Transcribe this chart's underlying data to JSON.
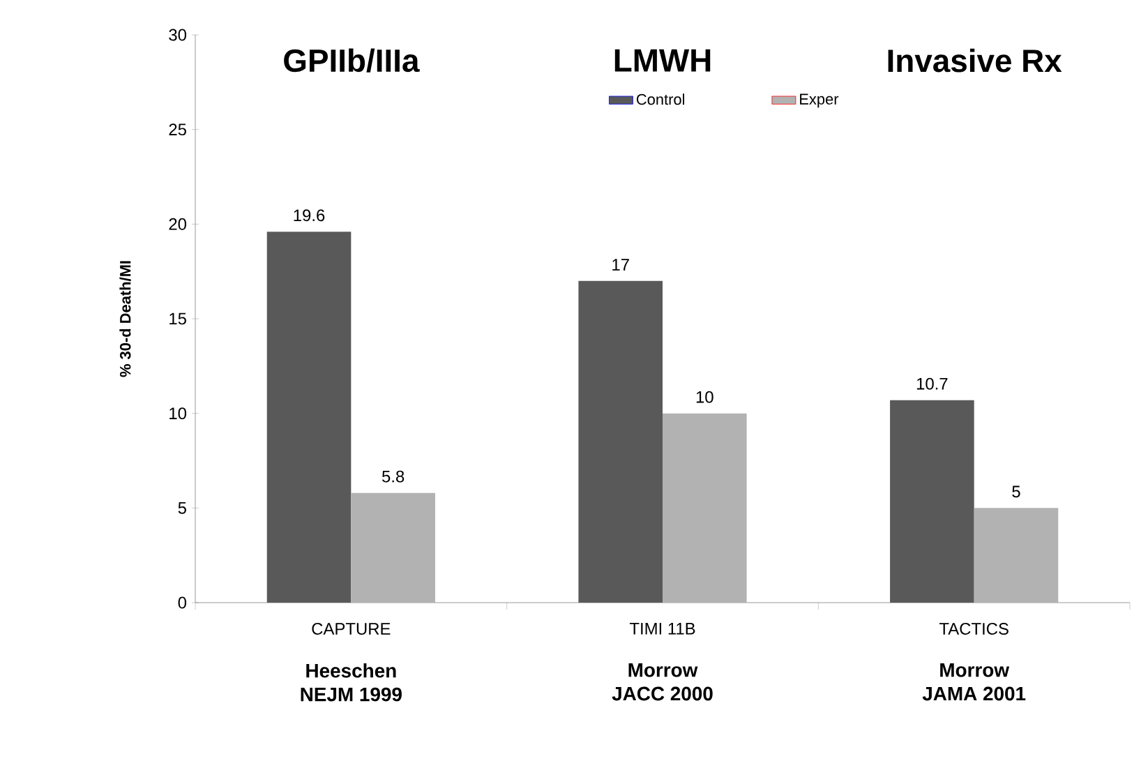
{
  "chart_data": {
    "type": "bar",
    "categories": [
      "CAPTURE",
      "TIMI 11B",
      "TACTICS"
    ],
    "series": [
      {
        "name": "Control",
        "color": "#595959",
        "values": [
          19.6,
          17,
          10.7
        ]
      },
      {
        "name": "Exper",
        "color": "#b2b2b2",
        "values": [
          5.8,
          10,
          5
        ]
      }
    ],
    "ylabel": "% 30-d Death/MI",
    "ylim": [
      0,
      30
    ],
    "yticks": [
      0,
      5,
      10,
      15,
      20,
      25,
      30
    ],
    "data_labels": true,
    "legend": "top",
    "annotations": [
      "GPIIb/IIIa",
      "LMWH",
      "Invasive Rx",
      "Heeschen",
      "NEJM 1999",
      "Morrow",
      "JACC 2000",
      "Morrow",
      "JAMA 2001"
    ]
  }
}
